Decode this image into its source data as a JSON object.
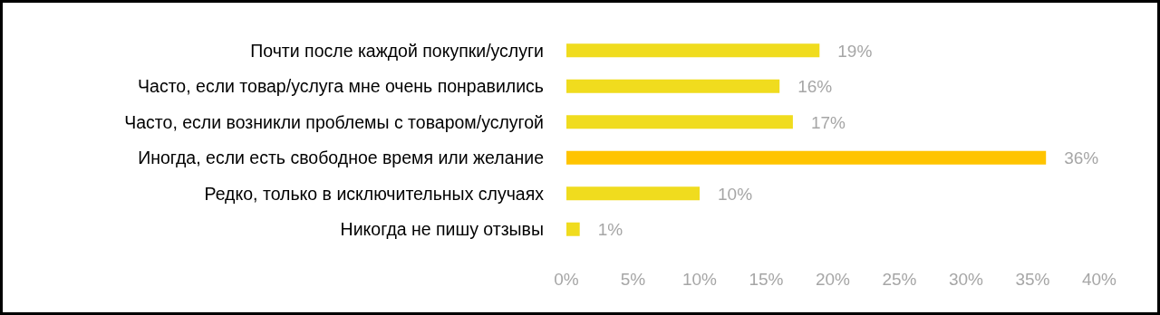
{
  "chart_data": {
    "type": "bar",
    "orientation": "horizontal",
    "categories": [
      "Почти после каждой покупки/услуги",
      "Часто, если товар/услуга мне очень понравились",
      "Часто, если возникли проблемы с товаром/услугой",
      "Иногда, если есть свободное время или желание",
      "Редко, только в исключительных случаях",
      "Никогда не пишу отзывы"
    ],
    "values": [
      19,
      16,
      17,
      36,
      10,
      1
    ],
    "colors": [
      "#f0dc1e",
      "#f0dc1e",
      "#f0dc1e",
      "#ffc400",
      "#f0dc1e",
      "#f0dc1e"
    ],
    "value_labels": [
      "19%",
      "16%",
      "17%",
      "36%",
      "10%",
      "1%"
    ],
    "xlim": [
      0,
      40
    ],
    "xticks": [
      {
        "value": 0,
        "label": "0%"
      },
      {
        "value": 5,
        "label": "5%"
      },
      {
        "value": 10,
        "label": "10%"
      },
      {
        "value": 15,
        "label": "15%"
      },
      {
        "value": 20,
        "label": "20%"
      },
      {
        "value": 25,
        "label": "25%"
      },
      {
        "value": 30,
        "label": "30%"
      },
      {
        "value": 35,
        "label": "35%"
      },
      {
        "value": 40,
        "label": "40%"
      }
    ],
    "grid": false
  }
}
